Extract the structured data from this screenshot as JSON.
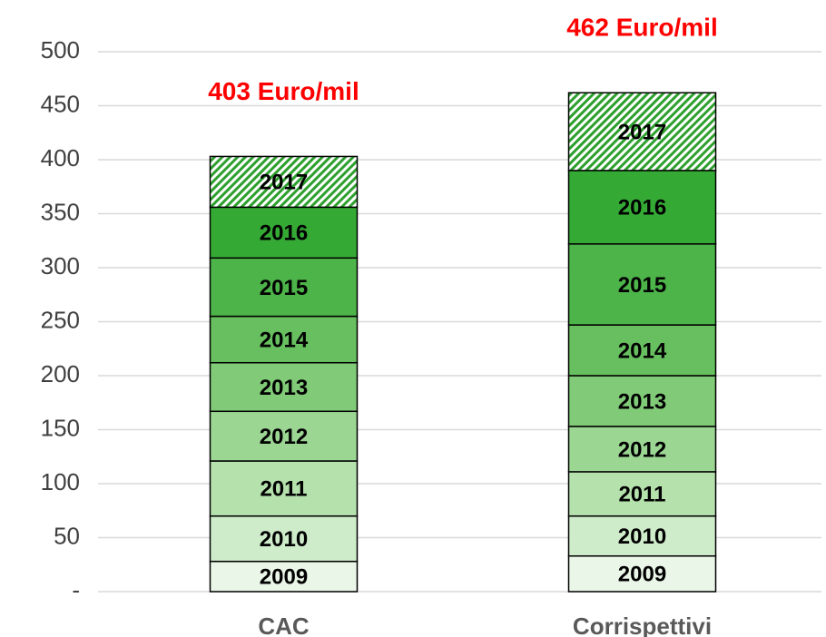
{
  "chart_data": {
    "type": "stacked_bar",
    "categories": [
      "CAC",
      "Corrispettivi"
    ],
    "series": [
      {
        "name": "2009",
        "color": "#eaf6e7",
        "values": [
          28,
          33
        ]
      },
      {
        "name": "2010",
        "color": "#cfecca",
        "values": [
          42,
          37
        ]
      },
      {
        "name": "2011",
        "color": "#b5e1ad",
        "values": [
          51,
          41
        ]
      },
      {
        "name": "2012",
        "color": "#9bd693",
        "values": [
          46,
          42
        ]
      },
      {
        "name": "2013",
        "color": "#81cb78",
        "values": [
          45,
          47
        ]
      },
      {
        "name": "2014",
        "color": "#67bf5f",
        "values": [
          43,
          47
        ]
      },
      {
        "name": "2015",
        "color": "#4db449",
        "values": [
          54,
          75
        ]
      },
      {
        "name": "2016",
        "color": "#34aa35",
        "values": [
          47,
          68
        ]
      },
      {
        "name": "2017",
        "color": "#2ea02e",
        "pattern": "hatch",
        "values": [
          47,
          72
        ]
      }
    ],
    "total_labels": [
      "403 Euro/mil",
      "462 Euro/mil"
    ],
    "ylim": [
      0,
      500
    ],
    "yticks": [
      {
        "value": 0,
        "label": "-"
      },
      50,
      100,
      150,
      200,
      250,
      300,
      350,
      400,
      450,
      500
    ],
    "grid": true
  }
}
